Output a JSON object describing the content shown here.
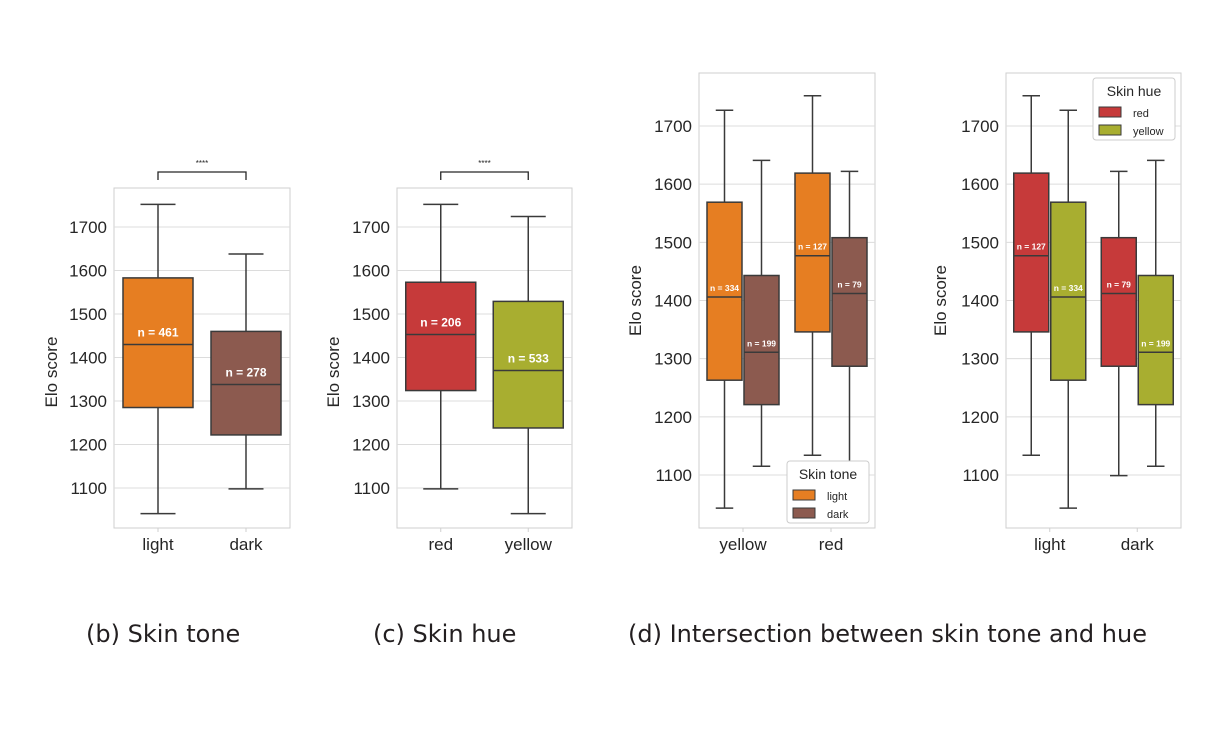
{
  "captions": {
    "b": "(b) Skin tone",
    "c": "(c) Skin hue",
    "d": "(d) Intersection between skin tone and hue"
  },
  "colors": {
    "light": "#e67e22",
    "dark": "#8c5a4f",
    "red": "#c63a3a",
    "yellow": "#a8ae30",
    "grid": "#dcdcdc",
    "frame": "#cfcfcf",
    "line": "#3a3a3a"
  },
  "chart_data": [
    {
      "id": "b",
      "type": "box",
      "xlabel": "",
      "ylabel": "Elo score",
      "yticks": [
        1100,
        1200,
        1300,
        1400,
        1500,
        1600,
        1700
      ],
      "ylim": [
        1015,
        1795
      ],
      "grid": true,
      "categories": [
        "light",
        "dark"
      ],
      "significance": {
        "text": "****",
        "between": [
          "light",
          "dark"
        ]
      },
      "boxes": [
        {
          "category": "light",
          "color": "light",
          "whisker_low": 1041,
          "q1": 1285,
          "median": 1430,
          "q3": 1583,
          "whisker_high": 1752,
          "label": "n = 461"
        },
        {
          "category": "dark",
          "color": "dark",
          "whisker_low": 1098,
          "q1": 1222,
          "median": 1338,
          "q3": 1460,
          "whisker_high": 1638,
          "label": "n = 278"
        }
      ]
    },
    {
      "id": "c",
      "type": "box",
      "xlabel": "",
      "ylabel": "Elo score",
      "yticks": [
        1100,
        1200,
        1300,
        1400,
        1500,
        1600,
        1700
      ],
      "ylim": [
        1015,
        1795
      ],
      "grid": true,
      "categories": [
        "red",
        "yellow"
      ],
      "significance": {
        "text": "****",
        "between": [
          "red",
          "yellow"
        ]
      },
      "boxes": [
        {
          "category": "red",
          "color": "red",
          "whisker_low": 1098,
          "q1": 1324,
          "median": 1453,
          "q3": 1573,
          "whisker_high": 1752,
          "label": "n = 206"
        },
        {
          "category": "yellow",
          "color": "yellow",
          "whisker_low": 1041,
          "q1": 1238,
          "median": 1370,
          "q3": 1529,
          "whisker_high": 1724,
          "label": "n = 533"
        }
      ]
    },
    {
      "id": "d1",
      "type": "box",
      "xlabel": "",
      "ylabel": "Elo score",
      "yticks": [
        1100,
        1200,
        1300,
        1400,
        1500,
        1600,
        1700
      ],
      "ylim": [
        1015,
        1795
      ],
      "grid": true,
      "categories": [
        "yellow",
        "red"
      ],
      "legend": {
        "title": "Skin tone",
        "position": "lower-right",
        "entries": [
          {
            "label": "light",
            "color": "light"
          },
          {
            "label": "dark",
            "color": "dark"
          }
        ]
      },
      "boxes": [
        {
          "category": "yellow",
          "slot": 0,
          "color": "light",
          "whisker_low": 1043,
          "q1": 1263,
          "median": 1406,
          "q3": 1569,
          "whisker_high": 1727,
          "label": "n = 334"
        },
        {
          "category": "yellow",
          "slot": 1,
          "color": "dark",
          "whisker_low": 1115,
          "q1": 1221,
          "median": 1311,
          "q3": 1443,
          "whisker_high": 1641,
          "label": "n = 199"
        },
        {
          "category": "red",
          "slot": 0,
          "color": "light",
          "whisker_low": 1134,
          "q1": 1346,
          "median": 1477,
          "q3": 1619,
          "whisker_high": 1752,
          "label": "n = 127"
        },
        {
          "category": "red",
          "slot": 1,
          "color": "dark",
          "whisker_low": 1099,
          "q1": 1287,
          "median": 1412,
          "q3": 1508,
          "whisker_high": 1622,
          "label": "n = 79"
        }
      ]
    },
    {
      "id": "d2",
      "type": "box",
      "xlabel": "",
      "ylabel": "Elo score",
      "yticks": [
        1100,
        1200,
        1300,
        1400,
        1500,
        1600,
        1700
      ],
      "ylim": [
        1015,
        1795
      ],
      "grid": true,
      "categories": [
        "light",
        "dark"
      ],
      "legend": {
        "title": "Skin hue",
        "position": "upper-right",
        "entries": [
          {
            "label": "red",
            "color": "red"
          },
          {
            "label": "yellow",
            "color": "yellow"
          }
        ]
      },
      "boxes": [
        {
          "category": "light",
          "slot": 0,
          "color": "red",
          "whisker_low": 1134,
          "q1": 1346,
          "median": 1477,
          "q3": 1619,
          "whisker_high": 1752,
          "label": "n = 127"
        },
        {
          "category": "light",
          "slot": 1,
          "color": "yellow",
          "whisker_low": 1043,
          "q1": 1263,
          "median": 1406,
          "q3": 1569,
          "whisker_high": 1727,
          "label": "n = 334"
        },
        {
          "category": "dark",
          "slot": 0,
          "color": "red",
          "whisker_low": 1099,
          "q1": 1287,
          "median": 1412,
          "q3": 1508,
          "whisker_high": 1622,
          "label": "n = 79"
        },
        {
          "category": "dark",
          "slot": 1,
          "color": "yellow",
          "whisker_low": 1115,
          "q1": 1221,
          "median": 1311,
          "q3": 1443,
          "whisker_high": 1641,
          "label": "n = 199"
        }
      ]
    }
  ]
}
